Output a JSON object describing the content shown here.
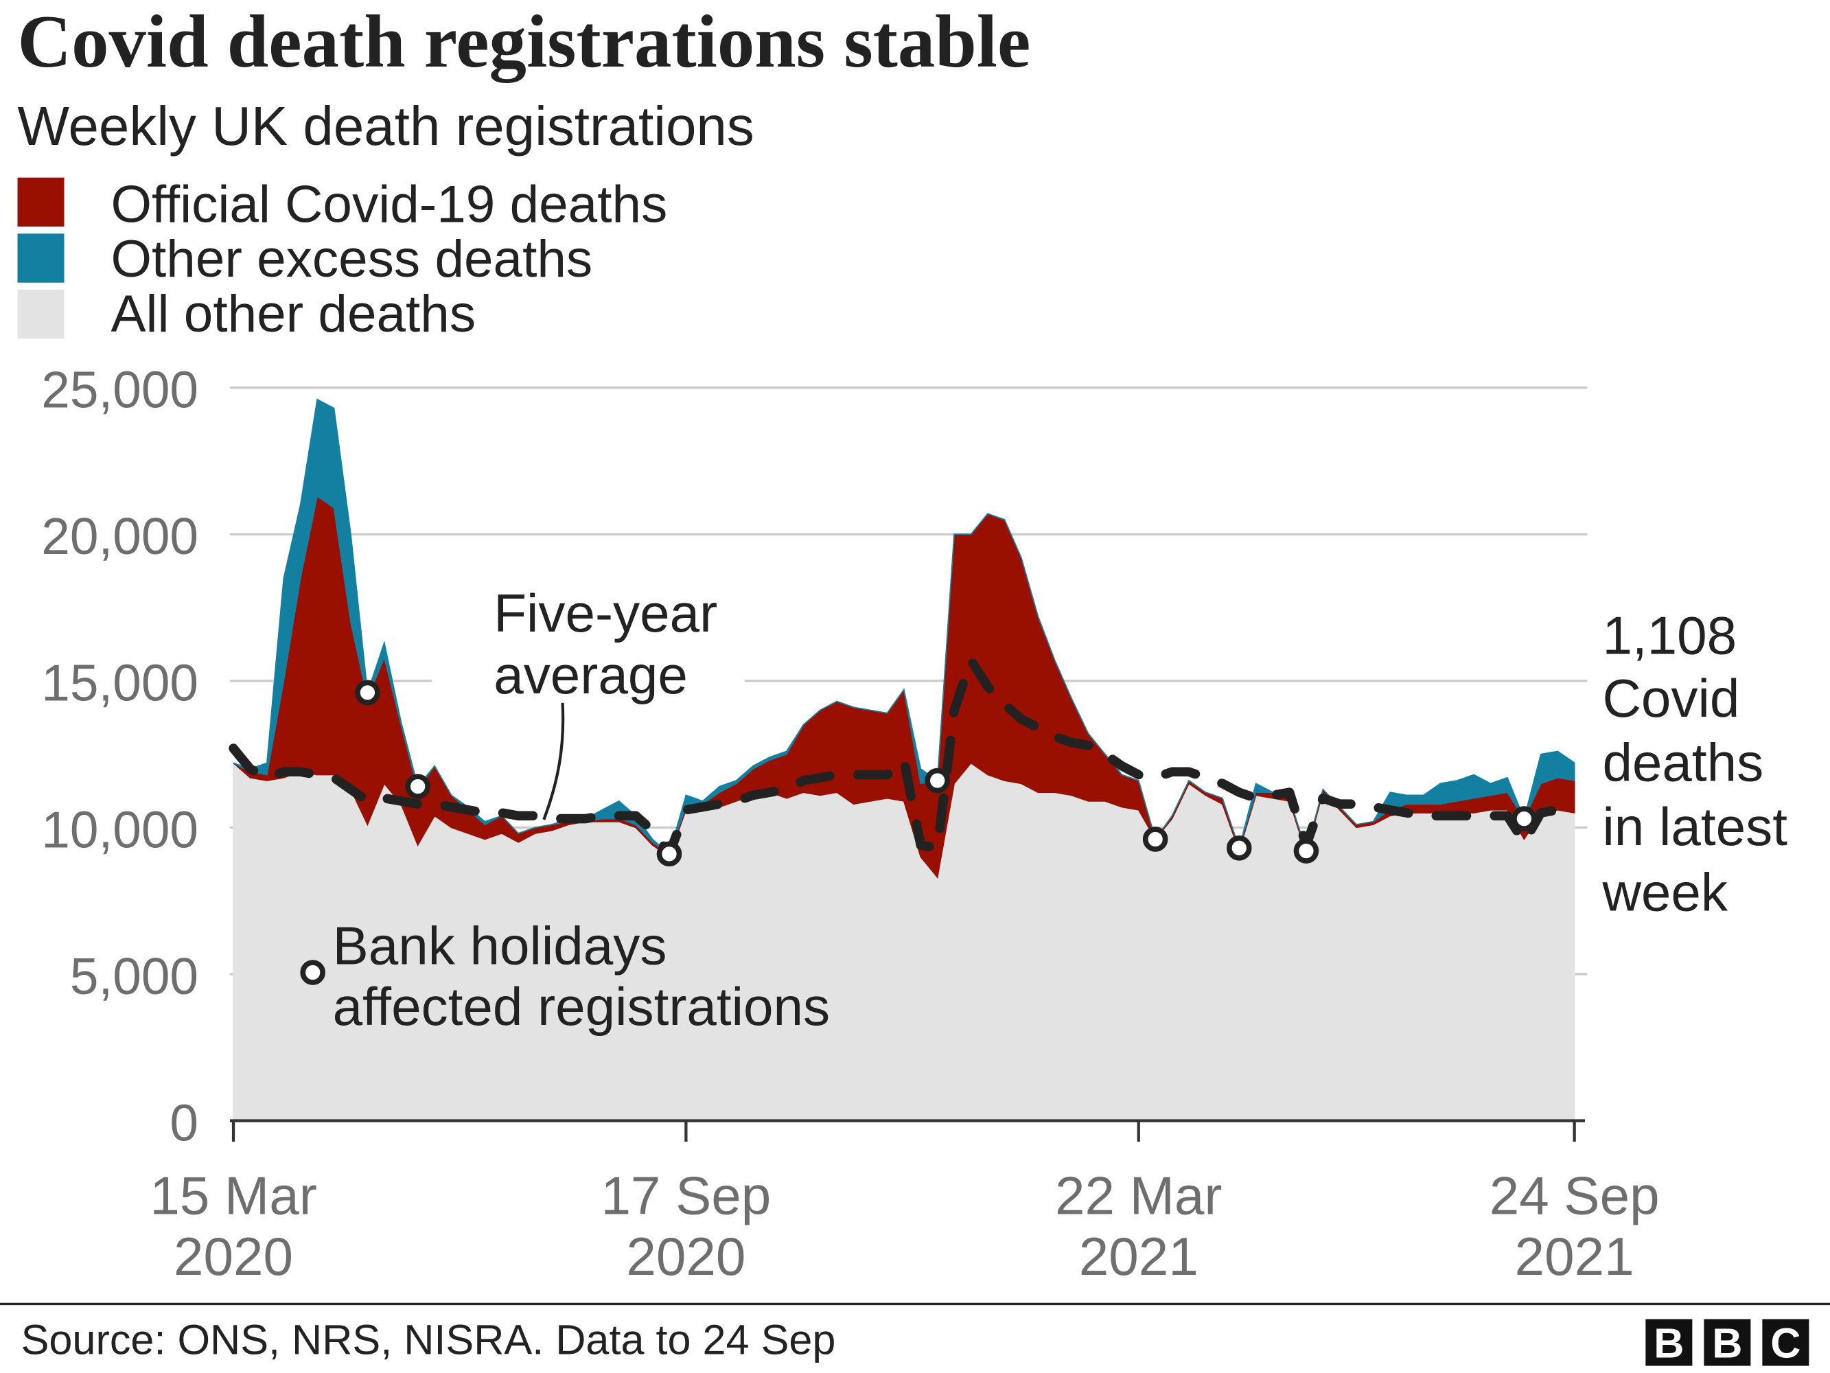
{
  "chart_data": {
    "type": "area",
    "stacked": true,
    "title": "Covid death registrations stable",
    "subtitle": "Weekly UK death registrations",
    "legend": {
      "placement": "top-left",
      "items": [
        {
          "name": "Official Covid-19 deaths",
          "color": "#990f00"
        },
        {
          "name": "Other excess deaths",
          "color": "#1380a1"
        },
        {
          "name": "All other deaths",
          "color": "#e3e3e3"
        }
      ]
    },
    "xlim": [
      "2020-03-15",
      "2021-09-24"
    ],
    "x_ticks": [
      {
        "line1": "15 Mar",
        "line2": "2020"
      },
      {
        "line1": "17 Sep",
        "line2": "2020"
      },
      {
        "line1": "22 Mar",
        "line2": "2021"
      },
      {
        "line1": "24 Sep",
        "line2": "2021"
      }
    ],
    "ylim": [
      0,
      25000
    ],
    "y_ticks": [
      "0",
      "5,000",
      "10,000",
      "15,000",
      "20,000",
      "25,000"
    ],
    "y_tick_values": [
      0,
      5000,
      10000,
      15000,
      20000,
      25000
    ],
    "grid": true,
    "series": [
      {
        "name": "All other deaths",
        "color": "#e3e3e3",
        "values": [
          12200,
          11700,
          11600,
          11700,
          11900,
          11800,
          11800,
          11300,
          10100,
          11500,
          10800,
          9400,
          10400,
          10000,
          9800,
          9600,
          9800,
          9500,
          9800,
          9900,
          10100,
          10200,
          10200,
          10200,
          10000,
          9400,
          9000,
          10600,
          10600,
          10700,
          10900,
          11100,
          11200,
          11000,
          11200,
          11100,
          11200,
          10800,
          10900,
          11000,
          10900,
          9000,
          8300,
          11500,
          12200,
          11800,
          11600,
          11500,
          11200,
          11200,
          11100,
          10900,
          10900,
          10700,
          10600,
          9600,
          10300,
          11500,
          11100,
          10800,
          9200,
          11100,
          11000,
          10900,
          9100,
          11200,
          10600,
          10000,
          10100,
          10400,
          10500,
          10500,
          10500,
          10500,
          10500,
          10600,
          10600,
          9600,
          10500,
          10600,
          10500
        ]
      },
      {
        "name": "Official Covid-19 deaths",
        "color": "#990f00",
        "values": [
          0,
          200,
          200,
          3300,
          6600,
          9500,
          9100,
          5700,
          4300,
          4300,
          2700,
          1900,
          1700,
          1100,
          800,
          500,
          600,
          300,
          200,
          200,
          100,
          0,
          100,
          100,
          100,
          100,
          100,
          100,
          200,
          500,
          600,
          900,
          1100,
          1500,
          2300,
          2900,
          3100,
          3300,
          3100,
          2900,
          3800,
          2500,
          3300,
          8500,
          7800,
          8900,
          8900,
          7700,
          6000,
          4500,
          3300,
          2300,
          1600,
          1100,
          1000,
          0,
          100,
          100,
          100,
          200,
          100,
          100,
          200,
          100,
          100,
          100,
          100,
          100,
          100,
          200,
          300,
          300,
          300,
          400,
          500,
          500,
          600,
          700,
          1000,
          1100,
          1108
        ]
      },
      {
        "name": "Other excess deaths",
        "color": "#1380a1",
        "values": [
          0,
          100,
          400,
          3500,
          2500,
          3300,
          3400,
          3000,
          200,
          500,
          100,
          100,
          0,
          0,
          100,
          100,
          0,
          0,
          0,
          0,
          100,
          100,
          300,
          600,
          300,
          100,
          0,
          400,
          100,
          200,
          100,
          100,
          100,
          100,
          0,
          0,
          0,
          0,
          0,
          0,
          0,
          500,
          0,
          0,
          0,
          0,
          0,
          0,
          0,
          0,
          0,
          0,
          0,
          0,
          0,
          0,
          0,
          0,
          0,
          0,
          0,
          300,
          0,
          0,
          0,
          0,
          0,
          0,
          0,
          600,
          300,
          300,
          700,
          700,
          800,
          400,
          500,
          0,
          1000,
          900,
          600
        ]
      }
    ],
    "five_year_average": [
      12700,
      12000,
      11700,
      11900,
      11900,
      11800,
      11700,
      11300,
      10900,
      11000,
      10900,
      10800,
      10800,
      10700,
      10600,
      10500,
      10500,
      10400,
      10400,
      10300,
      10300,
      10300,
      10400,
      10400,
      10400,
      9900,
      9100,
      10600,
      10700,
      10800,
      10900,
      11100,
      11200,
      11300,
      11600,
      11700,
      11800,
      11800,
      11800,
      11800,
      12300,
      9400,
      9300,
      14000,
      15700,
      14800,
      14200,
      13700,
      13400,
      13100,
      12900,
      12800,
      12500,
      12100,
      11800,
      11700,
      11900,
      11900,
      11700,
      11500,
      11200,
      11000,
      11100,
      11200,
      9400,
      11000,
      10800,
      10800,
      10700,
      10600,
      10500,
      10400,
      10400,
      10400,
      10400,
      10400,
      10400,
      9500,
      10500,
      10600,
      10600
    ],
    "bank_holiday_weeks": [
      8,
      11,
      26,
      42,
      55,
      60,
      64,
      77
    ],
    "annotations": {
      "five_year_average": [
        "Five-year",
        "average"
      ],
      "bank_holidays": [
        "Bank holidays",
        "affected registrations"
      ],
      "latest": [
        "1,108",
        "Covid",
        "deaths",
        "in latest",
        "week"
      ]
    }
  },
  "footer": {
    "source": "Source: ONS, NRS, NISRA. Data to 24 Sep",
    "logo": "BBC"
  }
}
